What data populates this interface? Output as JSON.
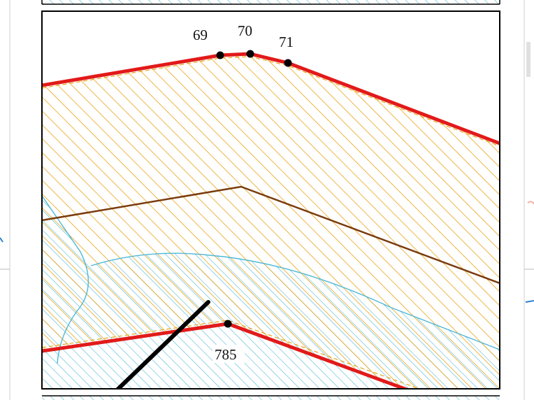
{
  "map": {
    "points": [
      {
        "id": "p69",
        "label": "69"
      },
      {
        "id": "p70",
        "label": "70"
      },
      {
        "id": "p71",
        "label": "71"
      },
      {
        "id": "p785",
        "label": "785"
      }
    ],
    "colors": {
      "parcel_hatch": "#e8a317",
      "parcel_boundary": "#e21a1a",
      "zone_hatch": "#4fb8d6",
      "center_line": "#7a3b0c",
      "marker": "#000000",
      "frame": "#000000",
      "background": "#ffffff"
    }
  }
}
